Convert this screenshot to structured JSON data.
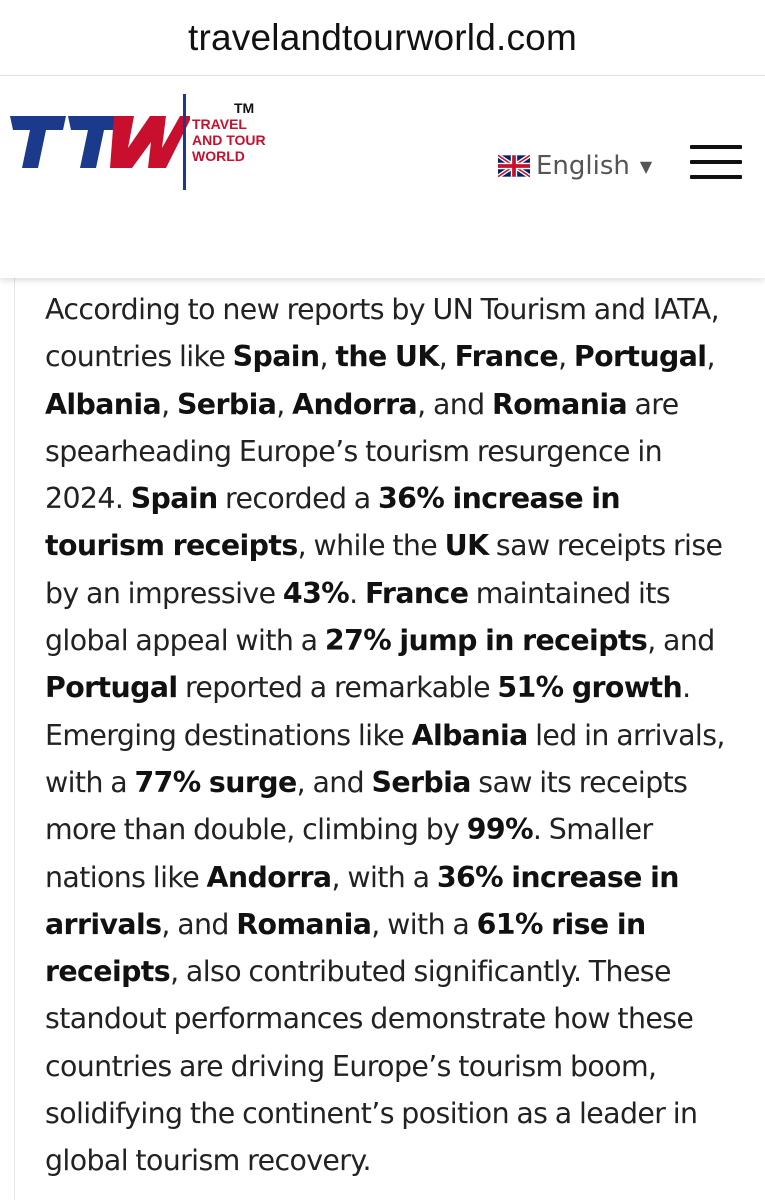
{
  "browser": {
    "url": "travelandtourworld.com"
  },
  "header": {
    "logo": {
      "letters": "TTW",
      "tm": "TM",
      "words": [
        "TRAVEL",
        "AND TOUR",
        "WORLD"
      ],
      "colors": {
        "blue": "#1b3a8c",
        "red": "#c8102e"
      }
    },
    "language": {
      "flag_icon": "uk-flag-icon",
      "label": "English",
      "caret": "▼"
    },
    "menu_icon": "hamburger-menu-icon"
  },
  "article": {
    "segments": [
      {
        "t": "According to new reports by UN Tourism and IATA, countries like "
      },
      {
        "t": "Spain",
        "b": true
      },
      {
        "t": ", "
      },
      {
        "t": "the UK",
        "b": true
      },
      {
        "t": ", "
      },
      {
        "t": "France",
        "b": true
      },
      {
        "t": ", "
      },
      {
        "t": "Portugal",
        "b": true
      },
      {
        "t": ", "
      },
      {
        "t": "Albania",
        "b": true
      },
      {
        "t": ", "
      },
      {
        "t": "Serbia",
        "b": true
      },
      {
        "t": ", "
      },
      {
        "t": "Andorra",
        "b": true
      },
      {
        "t": ", and "
      },
      {
        "t": "Romania",
        "b": true
      },
      {
        "t": " are spearheading Europe’s tourism resurgence in 2024. "
      },
      {
        "t": "Spain",
        "b": true
      },
      {
        "t": " recorded a "
      },
      {
        "t": "36% increase in tourism receipts",
        "b": true
      },
      {
        "t": ", while the "
      },
      {
        "t": "UK",
        "b": true
      },
      {
        "t": " saw receipts rise by an impressive "
      },
      {
        "t": "43%",
        "b": true
      },
      {
        "t": ". "
      },
      {
        "t": "France",
        "b": true
      },
      {
        "t": " maintained its global appeal with a "
      },
      {
        "t": "27% jump in receipts",
        "b": true
      },
      {
        "t": ", and "
      },
      {
        "t": "Portugal",
        "b": true
      },
      {
        "t": " reported a remarkable "
      },
      {
        "t": "51% growth",
        "b": true
      },
      {
        "t": ". Emerging destinations like "
      },
      {
        "t": "Albania",
        "b": true
      },
      {
        "t": " led in arrivals, with a "
      },
      {
        "t": "77% surge",
        "b": true
      },
      {
        "t": ", and "
      },
      {
        "t": "Serbia",
        "b": true
      },
      {
        "t": " saw its receipts more than double, climbing by "
      },
      {
        "t": "99%",
        "b": true
      },
      {
        "t": ". Smaller nations like "
      },
      {
        "t": "Andorra",
        "b": true
      },
      {
        "t": ", with a "
      },
      {
        "t": "36% increase in arrivals",
        "b": true
      },
      {
        "t": ", and "
      },
      {
        "t": "Romania",
        "b": true
      },
      {
        "t": ", with a "
      },
      {
        "t": "61% rise in receipts",
        "b": true
      },
      {
        "t": ", also contributed significantly. These standout performances demonstrate how these countries are driving Europe’s tourism boom, solidifying the continent’s position as a leader in global tourism recovery."
      }
    ]
  }
}
